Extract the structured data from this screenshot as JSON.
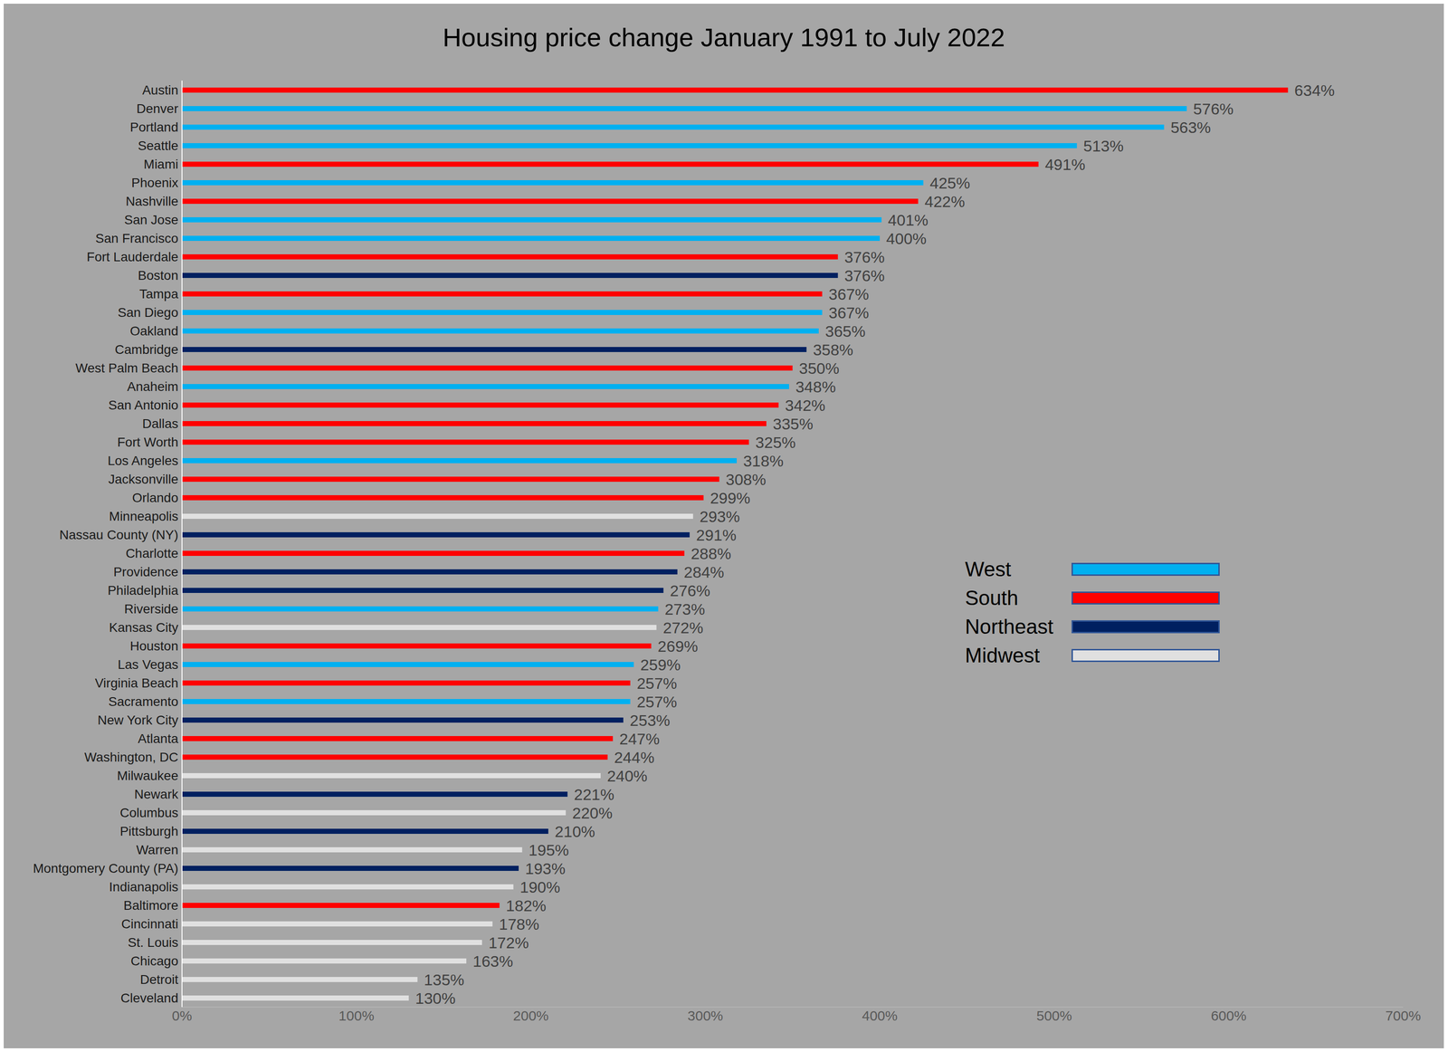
{
  "chart_data": {
    "type": "bar",
    "title": "Housing price change January 1991 to July 2022",
    "orientation": "horizontal",
    "data_labels": true,
    "grid": false,
    "legend": "right",
    "categories": [
      "Austin",
      "Denver",
      "Portland",
      "Seattle",
      "Miami",
      "Phoenix",
      "Nashville",
      "San Jose",
      "San Francisco",
      "Fort Lauderdale",
      "Boston",
      "Tampa",
      "San Diego",
      "Oakland",
      "Cambridge",
      "West Palm Beach",
      "Anaheim",
      "San Antonio",
      "Dallas",
      "Fort Worth",
      "Los Angeles",
      "Jacksonville",
      "Orlando",
      "Minneapolis",
      "Nassau County (NY)",
      "Charlotte",
      "Providence",
      "Philadelphia",
      "Riverside",
      "Kansas City",
      "Houston",
      "Las Vegas",
      "Virginia Beach",
      "Sacramento",
      "New York City",
      "Atlanta",
      "Washington, DC",
      "Milwaukee",
      "Newark",
      "Columbus",
      "Pittsburgh",
      "Warren",
      "Montgomery County (PA)",
      "Indianapolis",
      "Baltimore",
      "Cincinnati",
      "St. Louis",
      "Chicago",
      "Detroit",
      "Cleveland"
    ],
    "series": [
      {
        "name": "West",
        "color": "#00B0F0",
        "values": [
          null,
          576,
          563,
          513,
          null,
          425,
          null,
          401,
          400,
          null,
          null,
          null,
          367,
          365,
          null,
          null,
          348,
          null,
          null,
          null,
          318,
          null,
          null,
          null,
          null,
          null,
          null,
          null,
          273,
          null,
          null,
          259,
          null,
          257,
          null,
          null,
          null,
          null,
          null,
          null,
          null,
          null,
          null,
          null,
          null,
          null,
          null,
          null,
          null,
          null
        ],
        "value_labels": [
          null,
          "576%",
          "563%",
          "513%",
          null,
          "425%",
          null,
          "401%",
          "400%",
          null,
          null,
          null,
          "367%",
          "365%",
          null,
          null,
          "348%",
          null,
          null,
          null,
          "318%",
          null,
          null,
          null,
          null,
          null,
          null,
          null,
          "273%",
          null,
          null,
          "259%",
          null,
          "257%",
          null,
          null,
          null,
          null,
          null,
          null,
          null,
          null,
          null,
          null,
          null,
          null,
          null,
          null,
          null,
          null
        ]
      },
      {
        "name": "South",
        "color": "#FF0000",
        "values": [
          634,
          null,
          null,
          null,
          491,
          null,
          422,
          null,
          null,
          376,
          null,
          367,
          null,
          null,
          null,
          350,
          null,
          342,
          335,
          325,
          null,
          308,
          299,
          null,
          null,
          288,
          null,
          null,
          null,
          null,
          269,
          null,
          257,
          null,
          null,
          247,
          244,
          null,
          null,
          null,
          null,
          null,
          null,
          null,
          182,
          null,
          null,
          null,
          null,
          null
        ],
        "value_labels": [
          "634%",
          null,
          null,
          null,
          "491%",
          null,
          "422%",
          null,
          null,
          "376%",
          null,
          "367%",
          null,
          null,
          null,
          "350%",
          null,
          "342%",
          "335%",
          "325%",
          null,
          "308%",
          "299%",
          null,
          null,
          "288%",
          null,
          null,
          null,
          null,
          "269%",
          null,
          "257%",
          null,
          null,
          "247%",
          "244%",
          null,
          null,
          null,
          null,
          null,
          null,
          null,
          "182%",
          null,
          null,
          null,
          null,
          null
        ]
      },
      {
        "name": "Northeast",
        "color": "#002060",
        "values": [
          null,
          null,
          null,
          null,
          null,
          null,
          null,
          null,
          null,
          null,
          376,
          null,
          null,
          null,
          358,
          null,
          null,
          null,
          null,
          null,
          null,
          null,
          null,
          null,
          291,
          null,
          284,
          276,
          null,
          null,
          null,
          null,
          null,
          null,
          253,
          null,
          null,
          null,
          221,
          null,
          210,
          null,
          193,
          null,
          null,
          null,
          null,
          null,
          null,
          null
        ],
        "value_labels": [
          null,
          null,
          null,
          null,
          null,
          null,
          null,
          null,
          null,
          null,
          "376%",
          null,
          null,
          null,
          "358%",
          null,
          null,
          null,
          null,
          null,
          null,
          null,
          null,
          null,
          "291%",
          null,
          "284%",
          "276%",
          null,
          null,
          null,
          null,
          null,
          null,
          "253%",
          null,
          null,
          null,
          "221%",
          null,
          "210%",
          null,
          "193%",
          null,
          null,
          null,
          null,
          null,
          null,
          null
        ]
      },
      {
        "name": "Midwest",
        "color": "#E0E0E0",
        "values": [
          null,
          null,
          null,
          null,
          null,
          null,
          null,
          null,
          null,
          null,
          null,
          null,
          null,
          null,
          null,
          null,
          null,
          null,
          null,
          null,
          null,
          null,
          null,
          293,
          null,
          null,
          null,
          null,
          null,
          272,
          null,
          null,
          null,
          null,
          null,
          null,
          null,
          240,
          null,
          220,
          null,
          195,
          null,
          190,
          null,
          178,
          172,
          163,
          135,
          130
        ],
        "value_labels": [
          null,
          null,
          null,
          null,
          null,
          null,
          null,
          null,
          null,
          null,
          null,
          null,
          null,
          null,
          null,
          null,
          null,
          null,
          null,
          null,
          null,
          null,
          null,
          "293%",
          null,
          null,
          null,
          null,
          null,
          "272%",
          null,
          null,
          null,
          null,
          null,
          null,
          null,
          "240%",
          null,
          "220%",
          null,
          "195%",
          null,
          "190%",
          null,
          "178%",
          "172%",
          "163%",
          "135%",
          "130%"
        ]
      }
    ],
    "xlim": [
      0,
      700
    ],
    "xticks": [
      {
        "value": 0,
        "label": "0%"
      },
      {
        "value": 100,
        "label": "100%"
      },
      {
        "value": 200,
        "label": "200%"
      },
      {
        "value": 300,
        "label": "300%"
      },
      {
        "value": 400,
        "label": "400%"
      },
      {
        "value": 500,
        "label": "500%"
      },
      {
        "value": 600,
        "label": "600%"
      },
      {
        "value": 700,
        "label": "700%"
      }
    ]
  }
}
